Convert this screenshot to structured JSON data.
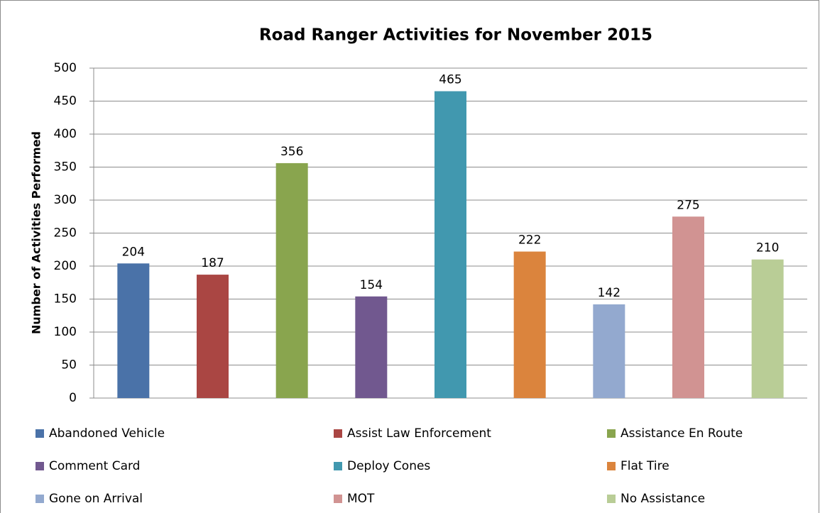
{
  "chart_data": {
    "type": "bar",
    "title": "Road Ranger Activities for November 2015",
    "y_label": "Number of Activities Performed",
    "categories": [
      null
    ],
    "series": [
      {
        "name": "Abandoned Vehicle",
        "color": "#4a72a8",
        "values": [
          204
        ]
      },
      {
        "name": "Assist Law Enforcement",
        "color": "#aa4643",
        "values": [
          187
        ]
      },
      {
        "name": "Assistance En Route",
        "color": "#89a54e",
        "values": [
          356
        ]
      },
      {
        "name": "Comment Card",
        "color": "#71588f",
        "values": [
          154
        ]
      },
      {
        "name": "Deploy Cones",
        "color": "#4198af",
        "values": [
          465
        ]
      },
      {
        "name": "Flat Tire",
        "color": "#db843d",
        "values": [
          222
        ]
      },
      {
        "name": "Gone on Arrival",
        "color": "#93a9cf",
        "values": [
          142
        ]
      },
      {
        "name": "MOT",
        "color": "#d19392",
        "values": [
          275
        ]
      },
      {
        "name": "No Assistance",
        "color": "#b9cd96",
        "values": [
          210
        ]
      }
    ],
    "ylim": [
      0,
      500
    ],
    "yticks": [
      0,
      50,
      100,
      150,
      200,
      250,
      300,
      350,
      400,
      450,
      500
    ],
    "grid": true,
    "legend": "bottom"
  }
}
